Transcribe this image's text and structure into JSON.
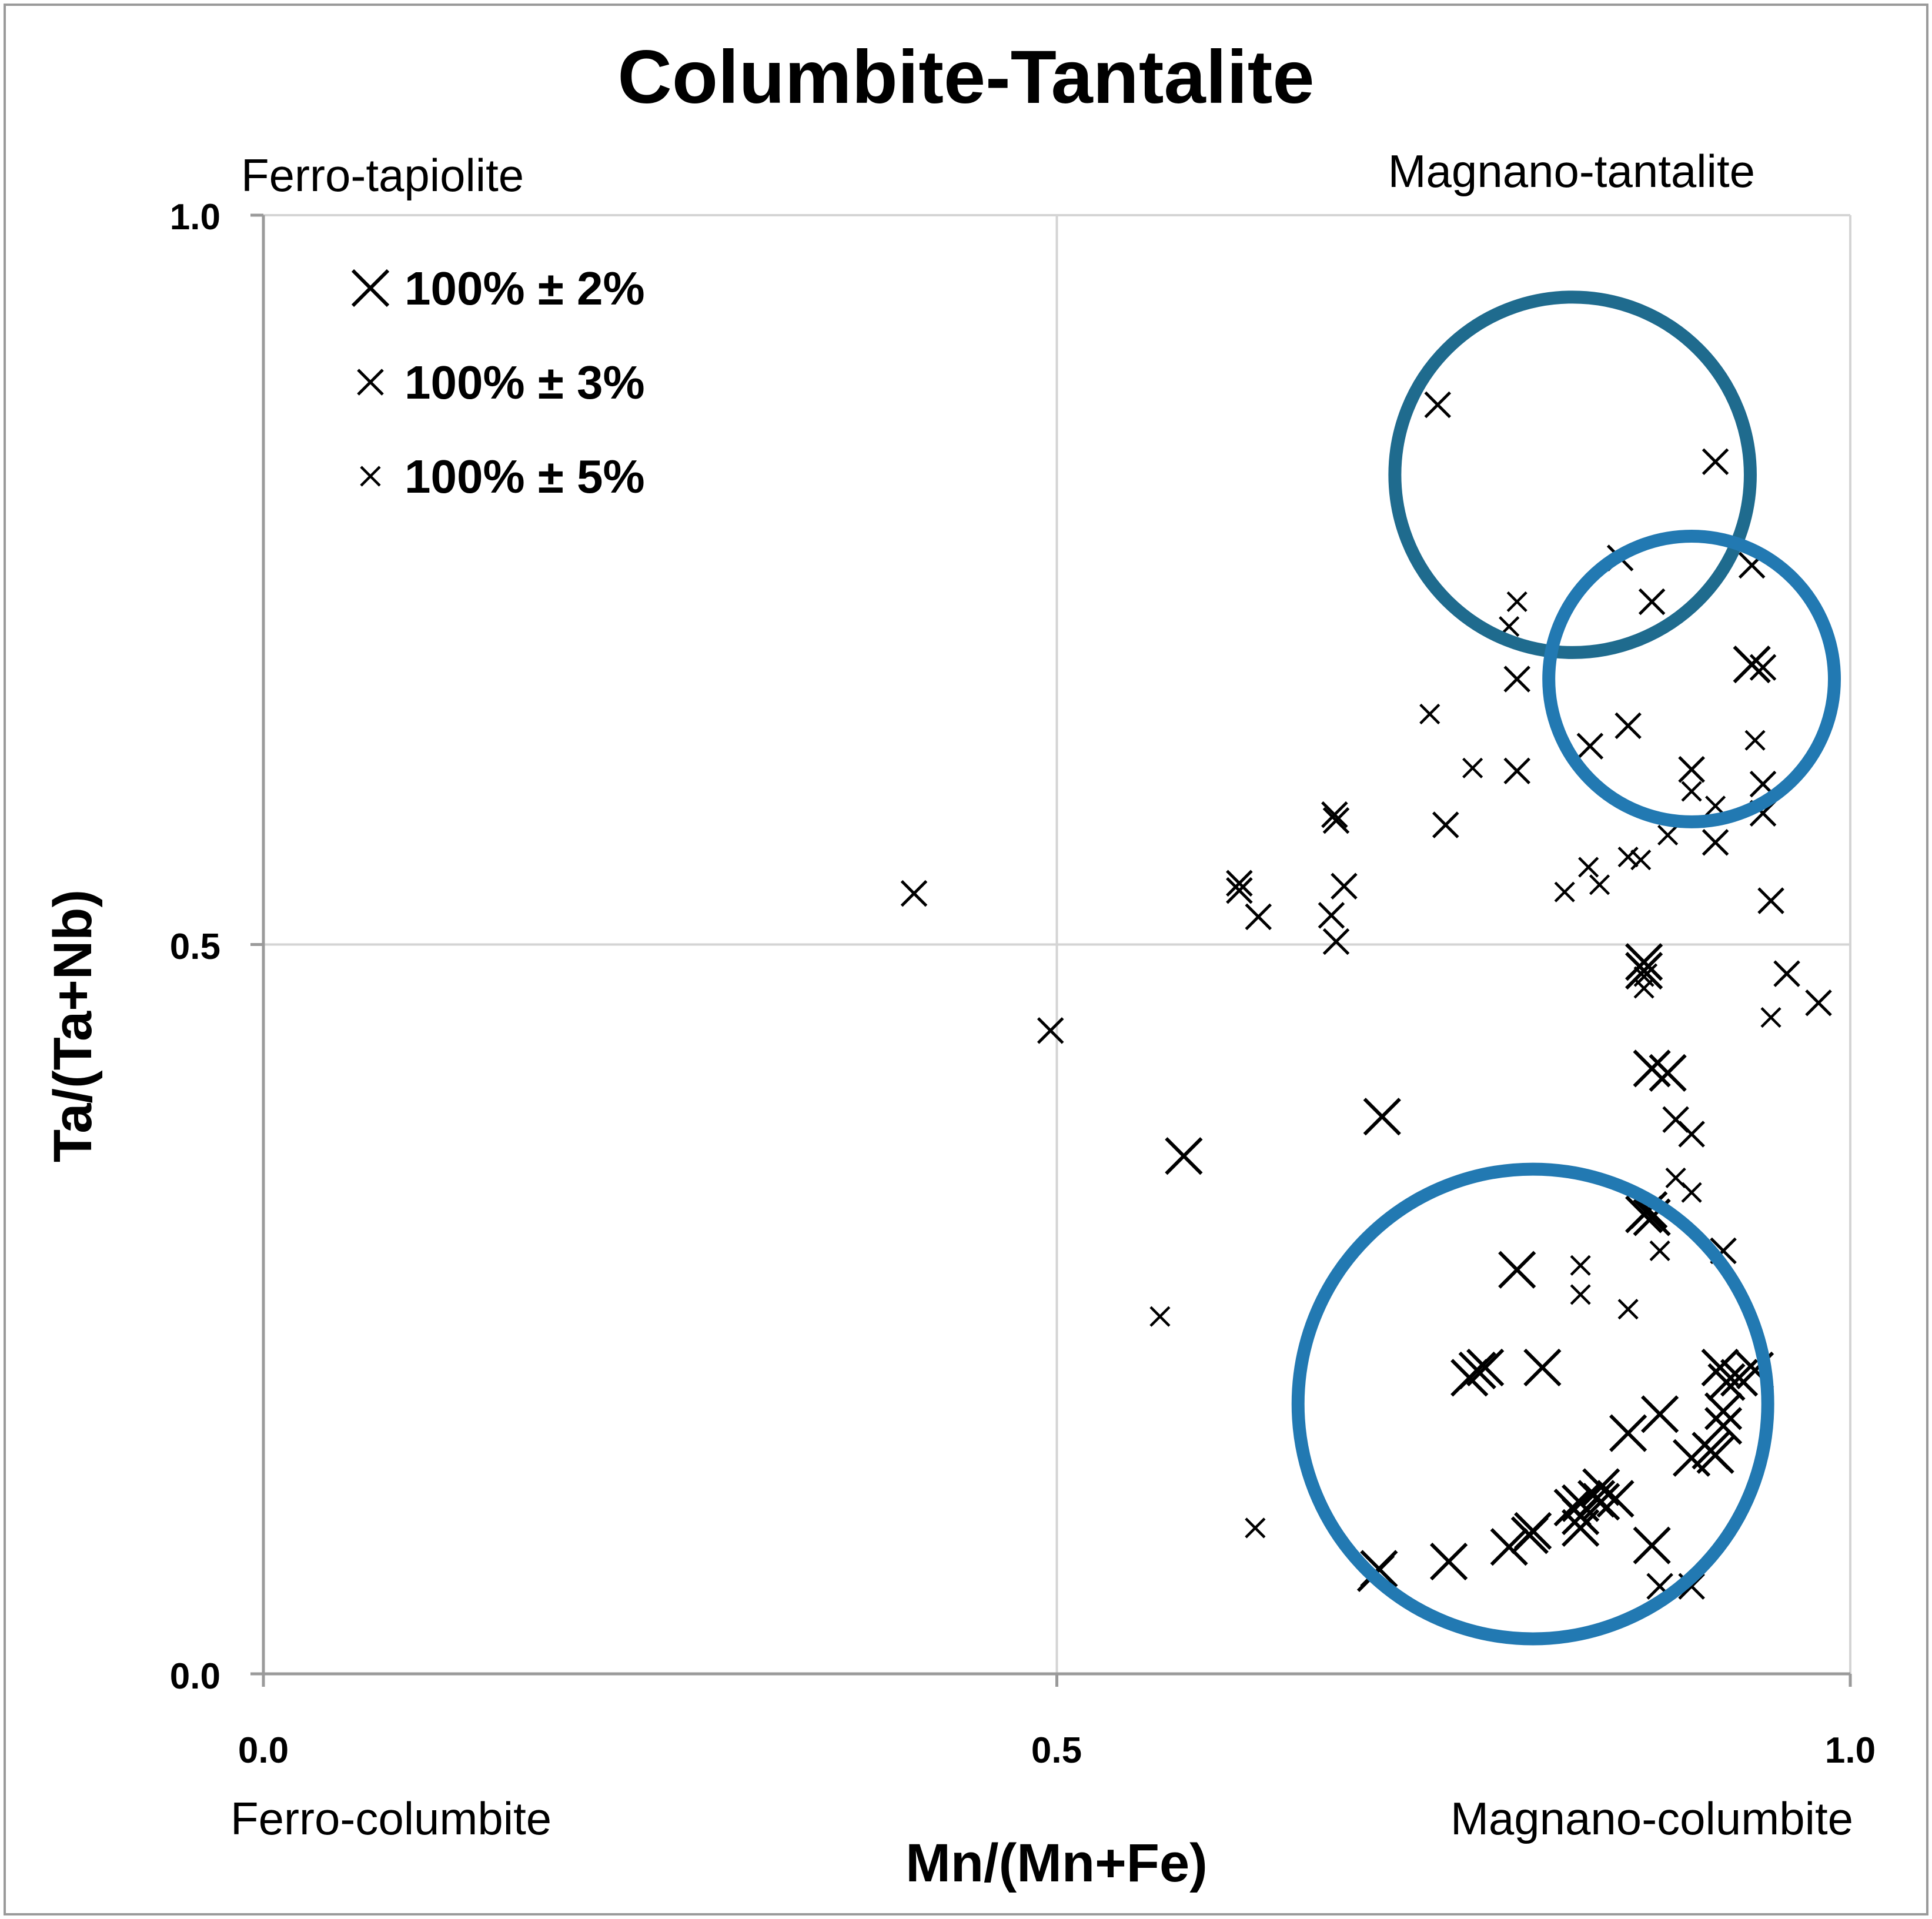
{
  "chart_data": {
    "type": "scatter",
    "title": "Columbite-Tantalite",
    "xlabel": "Mn/(Mn+Fe)",
    "ylabel": "Ta/(Ta+Nb)",
    "xlim": [
      0.0,
      1.0
    ],
    "ylim": [
      0.0,
      1.0
    ],
    "x_ticks": [
      "0.0",
      "0.5",
      "1.0"
    ],
    "y_ticks": [
      "0.0",
      "0.5",
      "1.0"
    ],
    "grid": true,
    "corner_labels": {
      "top_left": "Ferro-tapiolite",
      "top_right": "Magnano-tantalite",
      "bottom_left": "Ferro-columbite",
      "bottom_right": "Magnano-columbite"
    },
    "legend_position": "top-left",
    "series": [
      {
        "name": "100% ± 2%",
        "marker": "x-large",
        "points": [
          [
            0.58,
            0.355
          ],
          [
            0.705,
            0.382
          ],
          [
            0.79,
            0.277
          ],
          [
            0.76,
            0.203
          ],
          [
            0.765,
            0.208
          ],
          [
            0.77,
            0.21
          ],
          [
            0.8,
            0.098
          ],
          [
            0.798,
            0.095
          ],
          [
            0.785,
            0.087
          ],
          [
            0.747,
            0.077
          ],
          [
            0.703,
            0.072
          ],
          [
            0.701,
            0.069
          ],
          [
            0.825,
            0.114
          ],
          [
            0.83,
            0.117
          ],
          [
            0.806,
            0.21
          ],
          [
            0.843,
            0.118
          ],
          [
            0.84,
            0.12
          ],
          [
            0.852,
            0.12
          ],
          [
            0.843,
            0.128
          ],
          [
            0.83,
            0.108
          ],
          [
            0.83,
            0.1
          ],
          [
            0.875,
            0.088
          ],
          [
            0.86,
            0.165
          ],
          [
            0.88,
            0.178
          ],
          [
            0.93,
            0.203
          ],
          [
            0.9,
            0.148
          ],
          [
            0.918,
            0.21
          ],
          [
            0.922,
            0.2
          ],
          [
            0.92,
            0.17
          ],
          [
            0.912,
            0.153
          ],
          [
            0.915,
            0.15
          ],
          [
            0.92,
            0.18
          ],
          [
            0.94,
            0.208
          ],
          [
            0.87,
            0.482
          ],
          [
            0.87,
            0.488
          ],
          [
            0.875,
            0.415
          ],
          [
            0.885,
            0.412
          ],
          [
            0.87,
            0.315
          ],
          [
            0.875,
            0.313
          ],
          [
            0.873,
            0.318
          ],
          [
            0.938,
            0.692
          ]
        ]
      },
      {
        "name": "100% ± 3%",
        "marker": "x-medium",
        "points": [
          [
            0.41,
            0.535
          ],
          [
            0.496,
            0.441
          ],
          [
            0.74,
            0.87
          ],
          [
            0.855,
            0.765
          ],
          [
            0.875,
            0.735
          ],
          [
            0.915,
            0.831
          ],
          [
            0.938,
            0.76
          ],
          [
            0.945,
            0.69
          ],
          [
            0.79,
            0.682
          ],
          [
            0.675,
            0.589
          ],
          [
            0.681,
            0.54
          ],
          [
            0.676,
            0.502
          ],
          [
            0.615,
            0.537
          ],
          [
            0.627,
            0.519
          ],
          [
            0.673,
            0.52
          ],
          [
            0.615,
            0.542
          ],
          [
            0.676,
            0.585
          ],
          [
            0.745,
            0.582
          ],
          [
            0.79,
            0.619
          ],
          [
            0.836,
            0.636
          ],
          [
            0.86,
            0.65
          ],
          [
            0.9,
            0.62
          ],
          [
            0.915,
            0.57
          ],
          [
            0.9,
            0.62
          ],
          [
            0.945,
            0.61
          ],
          [
            0.945,
            0.59
          ],
          [
            0.95,
            0.53
          ],
          [
            0.96,
            0.48
          ],
          [
            0.98,
            0.46
          ],
          [
            0.89,
            0.38
          ],
          [
            0.9,
            0.37
          ],
          [
            0.92,
            0.29
          ],
          [
            0.9,
            0.06
          ],
          [
            0.88,
            0.06
          ]
        ]
      },
      {
        "name": "100% ± 5%",
        "marker": "x-small",
        "points": [
          [
            0.565,
            0.245
          ],
          [
            0.625,
            0.1
          ],
          [
            0.79,
            0.735
          ],
          [
            0.735,
            0.658
          ],
          [
            0.762,
            0.621
          ],
          [
            0.785,
            0.718
          ],
          [
            0.82,
            0.536
          ],
          [
            0.835,
            0.553
          ],
          [
            0.842,
            0.541
          ],
          [
            0.86,
            0.56
          ],
          [
            0.868,
            0.558
          ],
          [
            0.87,
            0.47
          ],
          [
            0.872,
            0.48
          ],
          [
            0.87,
            0.478
          ],
          [
            0.885,
            0.575
          ],
          [
            0.9,
            0.605
          ],
          [
            0.915,
            0.595
          ],
          [
            0.94,
            0.64
          ],
          [
            0.95,
            0.45
          ],
          [
            0.89,
            0.34
          ],
          [
            0.9,
            0.33
          ],
          [
            0.88,
            0.29
          ],
          [
            0.86,
            0.25
          ],
          [
            0.83,
            0.26
          ],
          [
            0.83,
            0.28
          ]
        ]
      }
    ],
    "circles": [
      {
        "cx": 0.825,
        "cy": 0.822,
        "r": 0.112,
        "color": "#1F6B8E"
      },
      {
        "cx": 0.9,
        "cy": 0.682,
        "r": 0.09,
        "color": "#2279B2"
      },
      {
        "cx": 0.8,
        "cy": 0.185,
        "r": 0.148,
        "color": "#2279B2"
      }
    ]
  }
}
